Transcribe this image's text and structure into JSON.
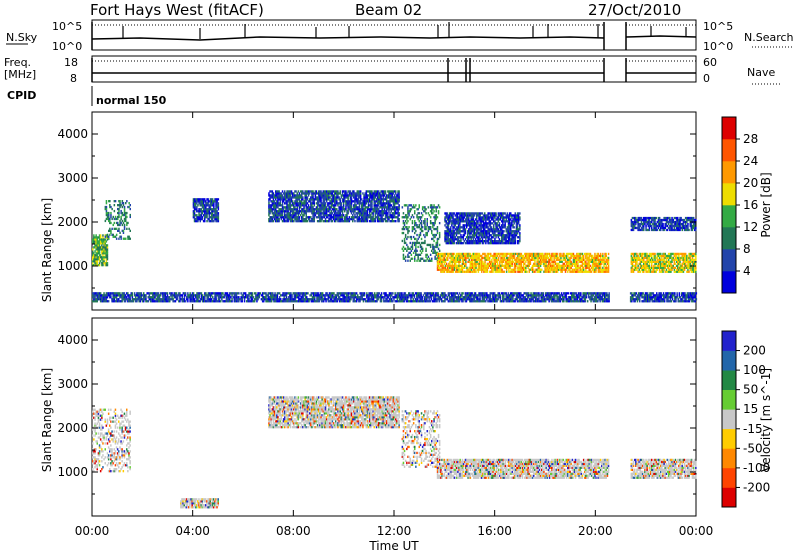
{
  "header": {
    "station": "Fort Hays West (fitACF)",
    "beam": "Beam 02",
    "date": "27/Oct/2010"
  },
  "top_panels": {
    "nsky_label": "N.Sky",
    "nsky_top_tick": "10^5",
    "nsky_bottom_tick": "10^0",
    "nsearch_label": "N.Search",
    "nsearch_top_tick": "10^5",
    "nsearch_bottom_tick": "10^0",
    "freq_label": "Freq.",
    "freq_unit": "[MHz]",
    "freq_top_tick": "18",
    "freq_bottom_tick": "8",
    "nave_label": "Nave",
    "nave_top_tick": "60",
    "nave_bottom_tick": "0",
    "cpid_label": "CPID",
    "cpid_value": "normal 150"
  },
  "chart_data": [
    {
      "type": "heatmap",
      "name": "power",
      "ylabel": "Slant Range [km]",
      "xlabel": "",
      "xlim": [
        0,
        24
      ],
      "ylim": [
        0,
        4500
      ],
      "x_ticks": [
        0,
        4,
        8,
        12,
        16,
        20,
        24
      ],
      "y_ticks": [
        1000,
        2000,
        3000,
        4000
      ],
      "colorbar": {
        "label": "Power [dB]",
        "ticks": [
          "4",
          "8",
          "12",
          "16",
          "20",
          "24",
          "28"
        ],
        "colors": [
          "#0000dd",
          "#2244aa",
          "#227755",
          "#33aa44",
          "#eedd00",
          "#ff9900",
          "#ff5500",
          "#dd0000"
        ]
      },
      "echo_regions": [
        {
          "t_start": 0.0,
          "t_end": 0.6,
          "range_low": 1000,
          "range_high": 1700,
          "typical_db": 14
        },
        {
          "t_start": 0.5,
          "t_end": 1.5,
          "range_low": 1600,
          "range_high": 2500,
          "typical_db": 10
        },
        {
          "t_start": 4.0,
          "t_end": 5.0,
          "range_low": 2000,
          "range_high": 2500,
          "typical_db": 6
        },
        {
          "t_start": 7.0,
          "t_end": 12.2,
          "range_low": 2000,
          "range_high": 2700,
          "typical_db": 6
        },
        {
          "t_start": 12.3,
          "t_end": 13.8,
          "range_low": 1100,
          "range_high": 2400,
          "typical_db": 10
        },
        {
          "t_start": 13.7,
          "t_end": 20.5,
          "range_low": 850,
          "range_high": 1300,
          "typical_db": 20
        },
        {
          "t_start": 14.0,
          "t_end": 17.0,
          "range_low": 1500,
          "range_high": 2200,
          "typical_db": 5
        },
        {
          "t_start": 21.4,
          "t_end": 24.0,
          "range_low": 850,
          "range_high": 1300,
          "typical_db": 18
        },
        {
          "t_start": 21.4,
          "t_end": 24.0,
          "range_low": 1800,
          "range_high": 2100,
          "typical_db": 5
        },
        {
          "t_start": 0.0,
          "t_end": 24.0,
          "range_low": 180,
          "range_high": 400,
          "typical_db": 6
        }
      ]
    },
    {
      "type": "heatmap",
      "name": "velocity",
      "ylabel": "Slant Range [km]",
      "xlabel": "Time UT",
      "xlim": [
        0,
        24
      ],
      "ylim": [
        0,
        4500
      ],
      "x_ticks": [
        0,
        4,
        8,
        12,
        16,
        20,
        24
      ],
      "y_ticks": [
        1000,
        2000,
        3000,
        4000
      ],
      "colorbar": {
        "label": "Velocity [m s^-1]",
        "ticks": [
          "200",
          "100",
          "50",
          "15",
          "-15",
          "-50",
          "-100",
          "-200"
        ],
        "colors": [
          "#2222cc",
          "#2266aa",
          "#228844",
          "#66cc33",
          "#c8c8c8",
          "#ffcc00",
          "#ff8800",
          "#ff4400",
          "#dd0000"
        ]
      },
      "echo_regions": [
        {
          "t_start": 0.0,
          "t_end": 1.5,
          "range_low": 1000,
          "range_high": 2400,
          "typical_ms": 0
        },
        {
          "t_start": 7.0,
          "t_end": 12.2,
          "range_low": 2000,
          "range_high": 2700,
          "typical_ms": 0
        },
        {
          "t_start": 12.3,
          "t_end": 13.8,
          "range_low": 1100,
          "range_high": 2400,
          "typical_ms": 0
        },
        {
          "t_start": 13.7,
          "t_end": 20.5,
          "range_low": 850,
          "range_high": 1300,
          "typical_ms": 0
        },
        {
          "t_start": 21.4,
          "t_end": 24.0,
          "range_low": 850,
          "range_high": 1300,
          "typical_ms": 0
        },
        {
          "t_start": 3.5,
          "t_end": 5.0,
          "range_low": 180,
          "range_high": 400,
          "typical_ms": -60
        }
      ]
    }
  ],
  "x_tick_labels": [
    "00:00",
    "04:00",
    "08:00",
    "12:00",
    "16:00",
    "20:00",
    "00:00"
  ],
  "y_tick_labels": [
    "1000",
    "2000",
    "3000",
    "4000"
  ],
  "data_gap_hours": [
    [
      20.55,
      21.35
    ]
  ]
}
